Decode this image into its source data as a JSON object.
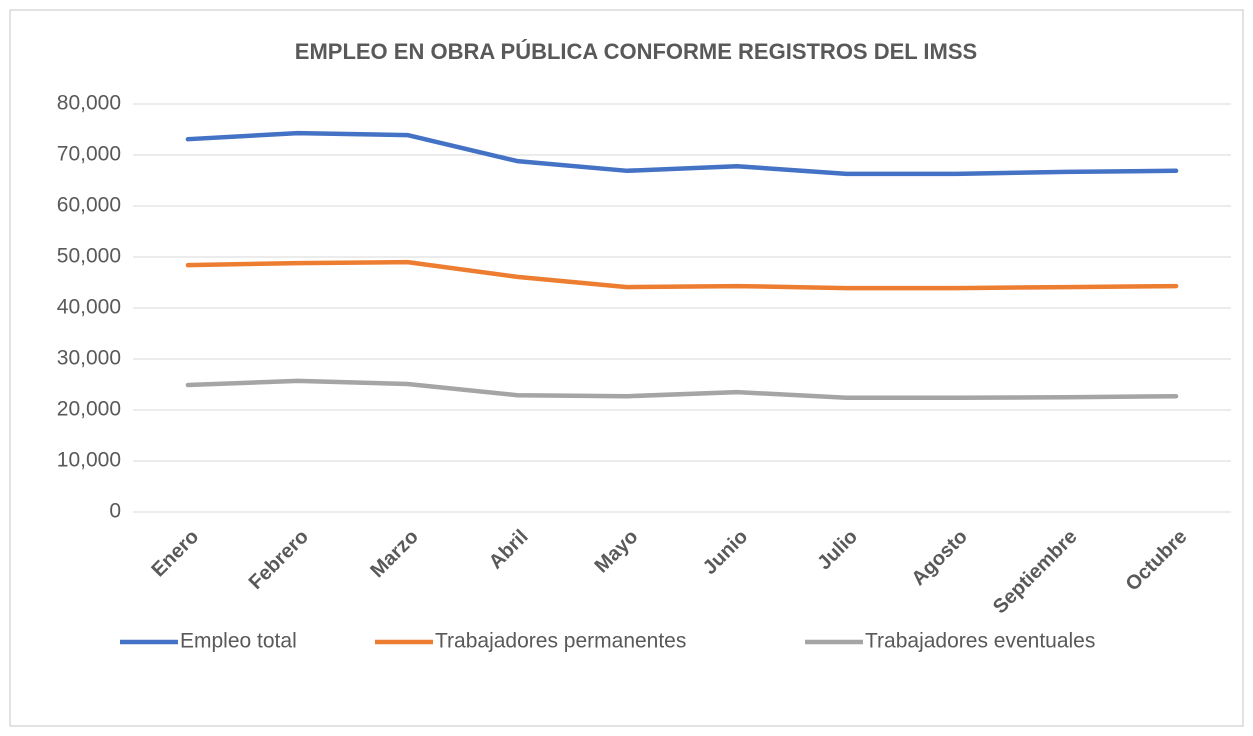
{
  "chart_data": {
    "type": "line",
    "title": "EMPLEO EN OBRA PÚBLICA CONFORME REGISTROS DEL IMSS",
    "categories": [
      "Enero",
      "Febrero",
      "Marzo",
      "Abril",
      "Mayo",
      "Junio",
      "Julio",
      "Agosto",
      "Septiembre",
      "Octubre"
    ],
    "series": [
      {
        "name": "Empleo total",
        "color": "#4472c4",
        "values": [
          73100,
          74300,
          73900,
          68800,
          66900,
          67800,
          66300,
          66300,
          66700,
          66900
        ]
      },
      {
        "name": "Trabajadores permanentes",
        "color": "#ed7d31",
        "values": [
          48400,
          48800,
          49000,
          46100,
          44100,
          44300,
          43900,
          43900,
          44100,
          44300
        ]
      },
      {
        "name": "Trabajadores eventuales",
        "color": "#a5a5a5",
        "values": [
          24900,
          25700,
          25100,
          22900,
          22700,
          23500,
          22400,
          22400,
          22500,
          22700
        ]
      }
    ],
    "ylim": [
      0,
      80000
    ],
    "yticks": [
      0,
      {
        "value": 10000,
        "label": "10,000"
      },
      {
        "value": 20000,
        "label": "20,000"
      },
      {
        "value": 30000,
        "label": "30,000"
      },
      {
        "value": 40000,
        "label": "40,000"
      },
      {
        "value": 50000,
        "label": "50,000"
      },
      {
        "value": 60000,
        "label": "60,000"
      },
      {
        "value": 70000,
        "label": "70,000"
      },
      {
        "value": 80000,
        "label": "80,000"
      }
    ],
    "grid": true,
    "legend": "bottom"
  }
}
